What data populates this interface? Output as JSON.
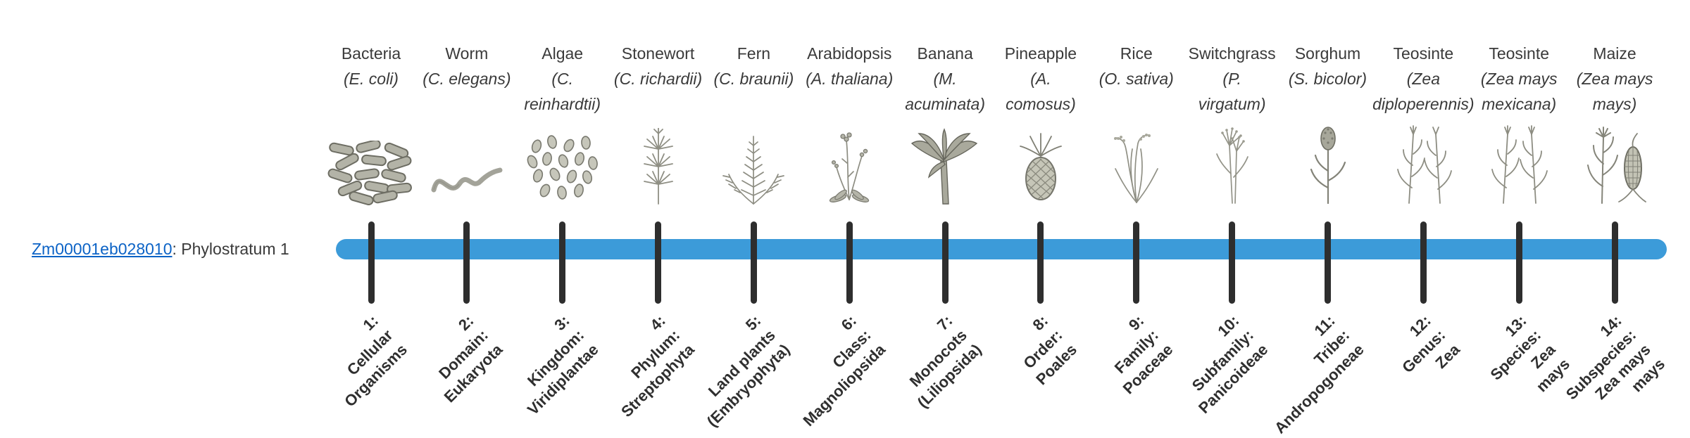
{
  "gene": {
    "id": "Zm00001eb028010",
    "suffix": ": Phylostratum 1"
  },
  "colors": {
    "bar": "#3C9BD9",
    "tick": "#2E2E2E",
    "link": "#0C63C6",
    "text": "#3A3A3A"
  },
  "taxa": [
    {
      "common": "Bacteria",
      "sci": [
        "(E. coli)"
      ],
      "icon": "bacteria-icon",
      "stratum": [
        "1:",
        "Cellular",
        "Organisms"
      ]
    },
    {
      "common": "Worm",
      "sci": [
        "(C. elegans)"
      ],
      "icon": "worm-icon",
      "stratum": [
        "2:",
        "Domain:",
        "Eukaryota"
      ]
    },
    {
      "common": "Algae",
      "sci": [
        "(C.",
        "reinhardtii)"
      ],
      "icon": "algae-icon",
      "stratum": [
        "3:",
        "Kingdom:",
        "Viridiplantae"
      ]
    },
    {
      "common": "Stonewort",
      "sci": [
        "(C. richardii)"
      ],
      "icon": "stonewort-icon",
      "stratum": [
        "4:",
        "Phylum:",
        "Streptophyta"
      ]
    },
    {
      "common": "Fern",
      "sci": [
        "(C. braunii)"
      ],
      "icon": "fern-icon",
      "stratum": [
        "5:",
        "Land plants",
        "(Embryophyta)"
      ]
    },
    {
      "common": "Arabidopsis",
      "sci": [
        "(A. thaliana)"
      ],
      "icon": "arabidopsis-icon",
      "stratum": [
        "6:",
        "Class:",
        "Magnoliopsida"
      ]
    },
    {
      "common": "Banana",
      "sci": [
        "(M.",
        "acuminata)"
      ],
      "icon": "banana-icon",
      "stratum": [
        "7:",
        "Monocots",
        "(Liliopsida)"
      ]
    },
    {
      "common": "Pineapple",
      "sci": [
        "(A.",
        "comosus)"
      ],
      "icon": "pineapple-icon",
      "stratum": [
        "8:",
        "Order:",
        "Poales"
      ]
    },
    {
      "common": "Rice",
      "sci": [
        "(O. sativa)"
      ],
      "icon": "rice-icon",
      "stratum": [
        "9:",
        "Family:",
        "Poaceae"
      ]
    },
    {
      "common": "Switchgrass",
      "sci": [
        "(P.",
        "virgatum)"
      ],
      "icon": "switchgrass-icon",
      "stratum": [
        "10:",
        "Subfamily:",
        "Panicoideae"
      ]
    },
    {
      "common": "Sorghum",
      "sci": [
        "(S. bicolor)"
      ],
      "icon": "sorghum-icon",
      "stratum": [
        "11:",
        "Tribe:",
        "Andropogoneae"
      ]
    },
    {
      "common": "Teosinte",
      "sci": [
        "(Zea",
        "diploperennis)"
      ],
      "icon": "teosinte-diploperennis-icon",
      "stratum": [
        "12:",
        "Genus:",
        "Zea"
      ]
    },
    {
      "common": "Teosinte",
      "sci": [
        "(Zea mays",
        "mexicana)"
      ],
      "icon": "teosinte-mexicana-icon",
      "stratum": [
        "13:",
        "Species:",
        "Zea",
        "mays"
      ]
    },
    {
      "common": "Maize",
      "sci": [
        "(Zea mays",
        "mays)"
      ],
      "icon": "maize-icon",
      "stratum": [
        "14:",
        "Subspecies:",
        "Zea mays",
        "mays"
      ]
    }
  ]
}
